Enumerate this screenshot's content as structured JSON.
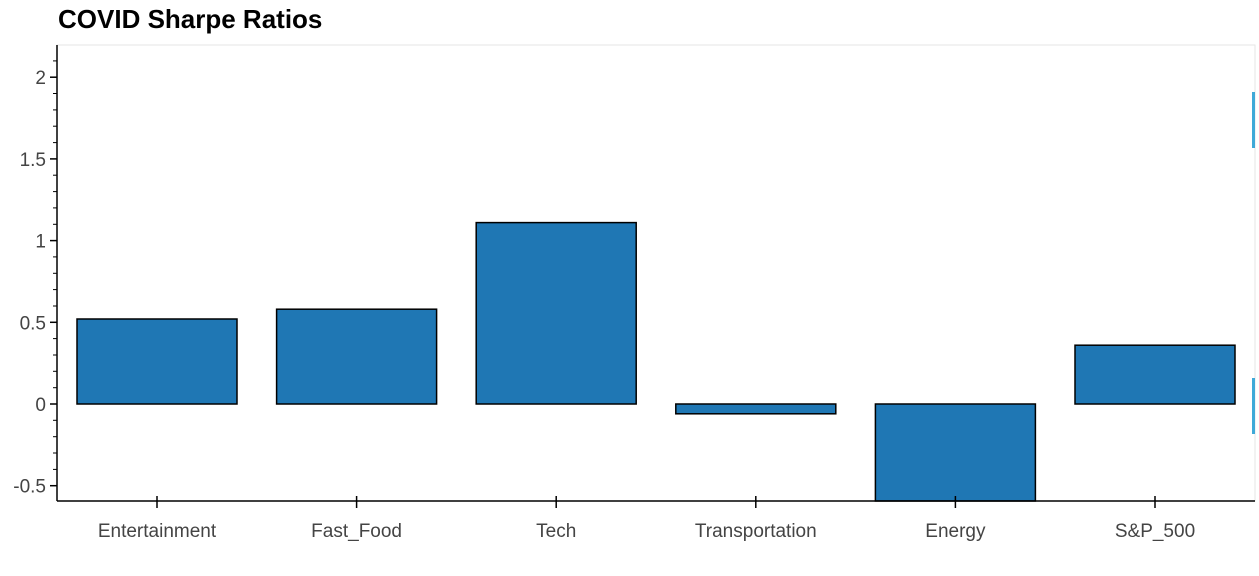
{
  "chart_data": {
    "type": "bar",
    "title": "COVID Sharpe Ratios",
    "xlabel": "",
    "ylabel": "",
    "categories": [
      "Entertainment",
      "Fast_Food",
      "Tech",
      "Transportation",
      "Energy",
      "S&P_500"
    ],
    "values": [
      0.52,
      0.58,
      1.11,
      -0.06,
      -0.6,
      0.36
    ],
    "ylim": [
      -0.6,
      2.2
    ],
    "yticks": [
      -0.5,
      0,
      0.5,
      1,
      1.5,
      2
    ],
    "ytick_labels": [
      "-0.5",
      "0",
      "0.5",
      "1",
      "1.5",
      "2"
    ],
    "grid": false,
    "bar_color": "#1f77b4",
    "bar_edge_color": "#000000"
  }
}
